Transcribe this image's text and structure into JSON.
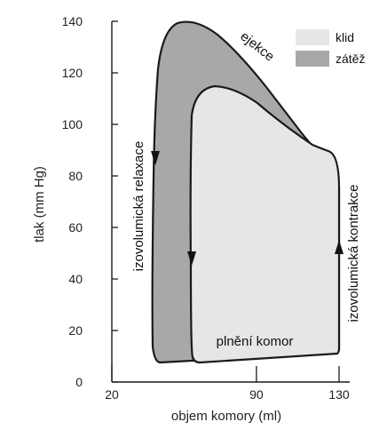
{
  "chart_data": {
    "type": "area",
    "xlabel": "objem komory (ml)",
    "ylabel": "tlak (mm Hg)",
    "xlim": [
      20,
      130
    ],
    "ylim": [
      0,
      140
    ],
    "x_ticks": [
      "20",
      "90",
      "130"
    ],
    "y_ticks": [
      "0",
      "20",
      "40",
      "60",
      "80",
      "100",
      "120",
      "140"
    ],
    "legend": {
      "placement": "top-right",
      "entries": [
        {
          "label": "klid",
          "color": "#e6e6e6"
        },
        {
          "label": "zátěž",
          "color": "#a8a8a8"
        }
      ]
    },
    "series": [
      {
        "name": "zátěž",
        "color": "#a8a8a8",
        "points": [
          [
            49,
            8
          ],
          [
            130,
            11
          ],
          [
            130,
            78
          ],
          [
            120,
            95
          ],
          [
            100,
            117
          ],
          [
            80,
            133
          ],
          [
            67,
            139
          ],
          [
            60,
            137
          ],
          [
            53,
            124
          ],
          [
            51,
            108
          ],
          [
            49,
            82
          ],
          [
            47,
            40
          ],
          [
            47,
            12
          ]
        ]
      },
      {
        "name": "klid",
        "color": "#e6e6e6",
        "points": [
          [
            69,
            7
          ],
          [
            130,
            11
          ],
          [
            130,
            74
          ],
          [
            127,
            89
          ],
          [
            118,
            93
          ],
          [
            106,
            103
          ],
          [
            90,
            114
          ],
          [
            79,
            115
          ],
          [
            71,
            107
          ],
          [
            69,
            80
          ],
          [
            68,
            40
          ],
          [
            68,
            12
          ]
        ]
      }
    ],
    "annotations": [
      {
        "text": "ejekce"
      },
      {
        "text": "izovolumická relaxace"
      },
      {
        "text": "izovolumická kontrakce"
      },
      {
        "text": "plnění komor"
      }
    ]
  }
}
